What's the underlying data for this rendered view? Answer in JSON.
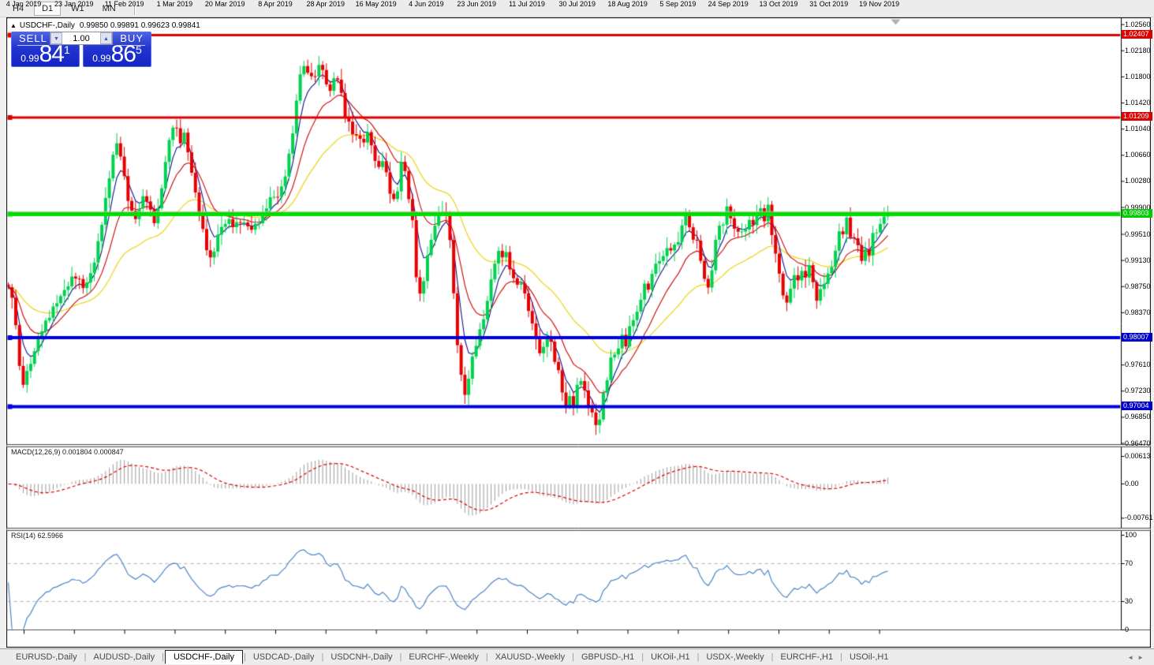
{
  "toolbar": {
    "timeframes": [
      "H4",
      "D1",
      "W1",
      "MN"
    ],
    "active": "D1"
  },
  "window": {
    "collapse_icon": "▲",
    "title_symbol": "USDCHF-,Daily",
    "ohlc_text": "0.99850 0.99891 0.99623 0.99841"
  },
  "trade_panel": {
    "sell_label": "SELL",
    "buy_label": "BUY",
    "volume": "1.00",
    "spin_down_icon": "▼",
    "spin_up_icon": "▲",
    "sell_price": {
      "small": "0.99",
      "big": "84",
      "sup": "1"
    },
    "buy_price": {
      "small": "0.99",
      "big": "86",
      "sup": "5"
    }
  },
  "price_axis": {
    "ticks": [
      "1.02560",
      "1.02180",
      "1.01800",
      "1.01420",
      "1.01040",
      "1.00660",
      "1.00280",
      "0.99900",
      "0.99510",
      "0.99130",
      "0.98750",
      "0.98370",
      "0.97990",
      "0.97610",
      "0.97230",
      "0.96850",
      "0.96470"
    ],
    "tags": [
      {
        "text": "1.02407",
        "color": "#dd0000"
      },
      {
        "text": "1.01209",
        "color": "#dd0000"
      },
      {
        "text": "0.99803",
        "color": "#00cc00"
      },
      {
        "text": "0.98007",
        "color": "#0000cc"
      },
      {
        "text": "0.97004",
        "color": "#0000cc"
      }
    ]
  },
  "date_axis": [
    "4 Jan 2019",
    "23 Jan 2019",
    "11 Feb 2019",
    "1 Mar 2019",
    "20 Mar 2019",
    "8 Apr 2019",
    "28 Apr 2019",
    "16 May 2019",
    "4 Jun 2019",
    "23 Jun 2019",
    "11 Jul 2019",
    "30 Jul 2019",
    "18 Aug 2019",
    "5 Sep 2019",
    "24 Sep 2019",
    "13 Oct 2019",
    "31 Oct 2019",
    "19 Nov 2019"
  ],
  "indicators": {
    "macd": {
      "label": "MACD(12,26,9) 0.001804 0.000847",
      "ticks": [
        {
          "text": "0.00613",
          "value": 0.00613
        },
        {
          "text": "0.00",
          "value": 0
        },
        {
          "text": "-0.00761",
          "value": -0.00761
        }
      ]
    },
    "rsi": {
      "label": "RSI(14) 62.5966",
      "ticks": [
        {
          "text": "100",
          "value": 100
        },
        {
          "text": "70",
          "value": 70
        },
        {
          "text": "30",
          "value": 30
        },
        {
          "text": "0",
          "value": 0
        }
      ]
    }
  },
  "tabs": {
    "items": [
      "EURUSD-,Daily",
      "AUDUSD-,Daily",
      "USDCHF-,Daily",
      "USDCAD-,Daily",
      "USDCNH-,Daily",
      "EURCHF-,Weekly",
      "XAUUSD-,Weekly",
      "GBPUSD-,H1",
      "UKOil-,H1",
      "USDX-,Weekly",
      "EURCHF-,H1",
      "USOil-,H1"
    ],
    "active": "USDCHF-,Daily",
    "scroll_left": "◄",
    "scroll_right": "►"
  },
  "chart_data": {
    "type": "candlestick",
    "symbol": "USDCHF-",
    "timeframe": "Daily",
    "current_ohlc": {
      "open": 0.9985,
      "high": 0.99891,
      "low": 0.99623,
      "close": 0.99841
    },
    "bid": 0.99841,
    "ask": 0.99865,
    "colors": {
      "bull": "#00d24f",
      "bear": "#e60000",
      "bid_line": "#bdbdbd"
    },
    "levels": [
      {
        "price": 1.02407,
        "color": "#dd0000",
        "width": 3
      },
      {
        "price": 1.01209,
        "color": "#dd0000",
        "width": 3
      },
      {
        "price": 0.99841,
        "color": "#bdbdbd",
        "width": 1
      },
      {
        "price": 0.99803,
        "color": "#00dd00",
        "width": 5
      },
      {
        "price": 0.98007,
        "color": "#0000dd",
        "width": 4
      },
      {
        "price": 0.97004,
        "color": "#0000dd",
        "width": 4
      }
    ],
    "moving_averages": [
      {
        "period": 5,
        "color": "#10108c"
      },
      {
        "period": 13,
        "color": "#cc0000"
      },
      {
        "period": 34,
        "color": "#ecd41a"
      }
    ],
    "macd": {
      "fast": 12,
      "slow": 26,
      "signal": 9,
      "histogram_color": "#9c9c9c",
      "signal_color": "#dd0000",
      "current": [
        0.001804,
        0.000847
      ]
    },
    "rsi": {
      "period": 14,
      "color": "#4f86c6",
      "levels": [
        70,
        30
      ],
      "current": 62.5966
    },
    "price_path": [
      [
        10,
        0.9872
      ],
      [
        14,
        0.986
      ],
      [
        18,
        0.9833
      ],
      [
        22,
        0.98
      ],
      [
        25,
        0.9743
      ],
      [
        29,
        0.9738
      ],
      [
        34,
        0.9752
      ],
      [
        40,
        0.9768
      ],
      [
        46,
        0.9788
      ],
      [
        52,
        0.981
      ],
      [
        58,
        0.9825
      ],
      [
        64,
        0.984
      ],
      [
        70,
        0.985
      ],
      [
        76,
        0.9858
      ],
      [
        82,
        0.9868
      ],
      [
        88,
        0.9882
      ],
      [
        94,
        0.9895
      ],
      [
        100,
        0.9885
      ],
      [
        106,
        0.9872
      ],
      [
        112,
        0.9882
      ],
      [
        118,
        0.9905
      ],
      [
        124,
        0.994
      ],
      [
        130,
        0.998
      ],
      [
        136,
        1.002
      ],
      [
        142,
        1.006
      ],
      [
        147,
        1.0082
      ],
      [
        152,
        1.0068
      ],
      [
        158,
        1.0028
      ],
      [
        164,
        0.9993
      ],
      [
        170,
        0.9972
      ],
      [
        176,
        0.9985
      ],
      [
        182,
        1.0008
      ],
      [
        188,
        0.9995
      ],
      [
        194,
        0.997
      ],
      [
        200,
        0.9988
      ],
      [
        206,
        1.003
      ],
      [
        212,
        1.0072
      ],
      [
        217,
        1.0105
      ],
      [
        222,
        1.0112
      ],
      [
        227,
        1.0085
      ],
      [
        232,
        1.0102
      ],
      [
        237,
        1.0078
      ],
      [
        242,
        1.004
      ],
      [
        248,
        1.0005
      ],
      [
        254,
        0.9972
      ],
      [
        260,
        0.994
      ],
      [
        266,
        0.9915
      ],
      [
        271,
        0.9928
      ],
      [
        277,
        0.9952
      ],
      [
        283,
        0.9965
      ],
      [
        290,
        0.9972
      ],
      [
        297,
        0.9965
      ],
      [
        304,
        0.997
      ],
      [
        311,
        0.9962
      ],
      [
        318,
        0.9958
      ],
      [
        325,
        0.9968
      ],
      [
        332,
        0.998
      ],
      [
        338,
        0.9992
      ],
      [
        344,
        1.0005
      ],
      [
        350,
        1.0002
      ],
      [
        356,
        1.0018
      ],
      [
        362,
        1.0045
      ],
      [
        368,
        1.0078
      ],
      [
        373,
        1.012
      ],
      [
        378,
        1.0165
      ],
      [
        383,
        1.0205
      ],
      [
        388,
        1.0182
      ],
      [
        393,
        1.0192
      ],
      [
        398,
        1.0172
      ],
      [
        403,
        1.0202
      ],
      [
        408,
        1.0188
      ],
      [
        413,
        1.0168
      ],
      [
        418,
        1.016
      ],
      [
        423,
        1.0178
      ],
      [
        428,
        1.0182
      ],
      [
        433,
        1.015
      ],
      [
        438,
        1.0118
      ],
      [
        443,
        1.0108
      ],
      [
        448,
        1.009
      ],
      [
        453,
        1.0098
      ],
      [
        458,
        1.0084
      ],
      [
        463,
        1.0095
      ],
      [
        468,
        1.01
      ],
      [
        473,
        1.0062
      ],
      [
        478,
        1.004
      ],
      [
        483,
        1.0062
      ],
      [
        488,
        1.0048
      ],
      [
        493,
        1.002
      ],
      [
        498,
        0.9998
      ],
      [
        503,
        1.0012
      ],
      [
        508,
        1.0052
      ],
      [
        513,
        1.0042
      ],
      [
        518,
        1.0
      ],
      [
        523,
        0.9968
      ],
      [
        528,
        0.988
      ],
      [
        533,
        0.9858
      ],
      [
        538,
        0.9895
      ],
      [
        543,
        0.9925
      ],
      [
        548,
        0.9952
      ],
      [
        553,
        0.9972
      ],
      [
        558,
        0.999
      ],
      [
        563,
        0.9988
      ],
      [
        568,
        0.9968
      ],
      [
        572,
        0.992
      ],
      [
        576,
        0.983
      ],
      [
        580,
        0.9782
      ],
      [
        584,
        0.9748
      ],
      [
        588,
        0.9712
      ],
      [
        592,
        0.9738
      ],
      [
        596,
        0.9758
      ],
      [
        600,
        0.978
      ],
      [
        605,
        0.9798
      ],
      [
        610,
        0.9815
      ],
      [
        615,
        0.9838
      ],
      [
        620,
        0.9872
      ],
      [
        625,
        0.9905
      ],
      [
        630,
        0.9928
      ],
      [
        635,
        0.9918
      ],
      [
        640,
        0.9925
      ],
      [
        645,
        0.9902
      ],
      [
        650,
        0.9888
      ],
      [
        655,
        0.9878
      ],
      [
        660,
        0.9885
      ],
      [
        665,
        0.9862
      ],
      [
        670,
        0.984
      ],
      [
        675,
        0.9812
      ],
      [
        680,
        0.9795
      ],
      [
        685,
        0.9772
      ],
      [
        690,
        0.9795
      ],
      [
        695,
        0.9812
      ],
      [
        700,
        0.978
      ],
      [
        705,
        0.9758
      ],
      [
        710,
        0.9738
      ],
      [
        714,
        0.9708
      ],
      [
        718,
        0.9698
      ],
      [
        722,
        0.9718
      ],
      [
        726,
        0.9702
      ],
      [
        730,
        0.9722
      ],
      [
        734,
        0.9748
      ],
      [
        738,
        0.9732
      ],
      [
        742,
        0.9712
      ],
      [
        746,
        0.97
      ],
      [
        750,
        0.9692
      ],
      [
        754,
        0.9678
      ],
      [
        757,
        0.9668
      ],
      [
        761,
        0.9695
      ],
      [
        765,
        0.9722
      ],
      [
        769,
        0.974
      ],
      [
        773,
        0.9762
      ],
      [
        777,
        0.978
      ],
      [
        781,
        0.9772
      ],
      [
        785,
        0.9792
      ],
      [
        789,
        0.981
      ],
      [
        793,
        0.9792
      ],
      [
        797,
        0.9812
      ],
      [
        801,
        0.9832
      ],
      [
        805,
        0.9822
      ],
      [
        809,
        0.9842
      ],
      [
        813,
        0.9862
      ],
      [
        817,
        0.988
      ],
      [
        821,
        0.987
      ],
      [
        825,
        0.9892
      ],
      [
        829,
        0.9912
      ],
      [
        833,
        0.99
      ],
      [
        837,
        0.9922
      ],
      [
        841,
        0.9912
      ],
      [
        845,
        0.9932
      ],
      [
        849,
        0.9922
      ],
      [
        853,
        0.9942
      ],
      [
        857,
        0.9932
      ],
      [
        861,
        0.9952
      ],
      [
        865,
        0.9965
      ],
      [
        869,
        0.9982
      ],
      [
        873,
        0.9958
      ],
      [
        877,
        0.994
      ],
      [
        881,
        0.9952
      ],
      [
        885,
        0.993
      ],
      [
        889,
        0.9908
      ],
      [
        893,
        0.9888
      ],
      [
        897,
        0.987
      ],
      [
        901,
        0.9892
      ],
      [
        905,
        0.9925
      ],
      [
        909,
        0.9952
      ],
      [
        913,
        0.9972
      ],
      [
        917,
        0.9962
      ],
      [
        920,
        0.9998
      ],
      [
        922,
        0.999
      ],
      [
        925,
        0.9982
      ],
      [
        929,
        0.9962
      ],
      [
        933,
        0.995
      ],
      [
        937,
        0.9962
      ],
      [
        941,
        0.9945
      ],
      [
        945,
        0.996
      ],
      [
        949,
        0.9972
      ],
      [
        953,
        0.996
      ],
      [
        957,
        0.9982
      ],
      [
        961,
        0.9992
      ],
      [
        965,
        0.9985
      ],
      [
        969,
        0.997
      ],
      [
        973,
        0.999
      ],
      [
        977,
        0.9958
      ],
      [
        981,
        0.993
      ],
      [
        985,
        0.991
      ],
      [
        989,
        0.9888
      ],
      [
        993,
        0.986
      ],
      [
        997,
        0.985
      ],
      [
        1001,
        0.9872
      ],
      [
        1005,
        0.9882
      ],
      [
        1009,
        0.9892
      ],
      [
        1013,
        0.988
      ],
      [
        1017,
        0.9902
      ],
      [
        1021,
        0.989
      ],
      [
        1025,
        0.9912
      ],
      [
        1029,
        0.9888
      ],
      [
        1033,
        0.986
      ],
      [
        1037,
        0.9852
      ],
      [
        1041,
        0.9872
      ],
      [
        1045,
        0.9882
      ],
      [
        1049,
        0.9892
      ],
      [
        1053,
        0.9902
      ],
      [
        1057,
        0.9922
      ],
      [
        1061,
        0.9942
      ],
      [
        1065,
        0.9962
      ],
      [
        1069,
        0.995
      ],
      [
        1073,
        0.997
      ],
      [
        1077,
        0.995
      ],
      [
        1081,
        0.994
      ],
      [
        1085,
        0.995
      ],
      [
        1089,
        0.9928
      ],
      [
        1093,
        0.991
      ],
      [
        1097,
        0.993
      ],
      [
        1101,
        0.992
      ],
      [
        1105,
        0.9942
      ],
      [
        1109,
        0.996
      ],
      [
        1113,
        0.995
      ],
      [
        1117,
        0.9972
      ],
      [
        1121,
        0.9982
      ],
      [
        1125,
        0.9986
      ],
      [
        1128,
        0.9984
      ]
    ]
  }
}
